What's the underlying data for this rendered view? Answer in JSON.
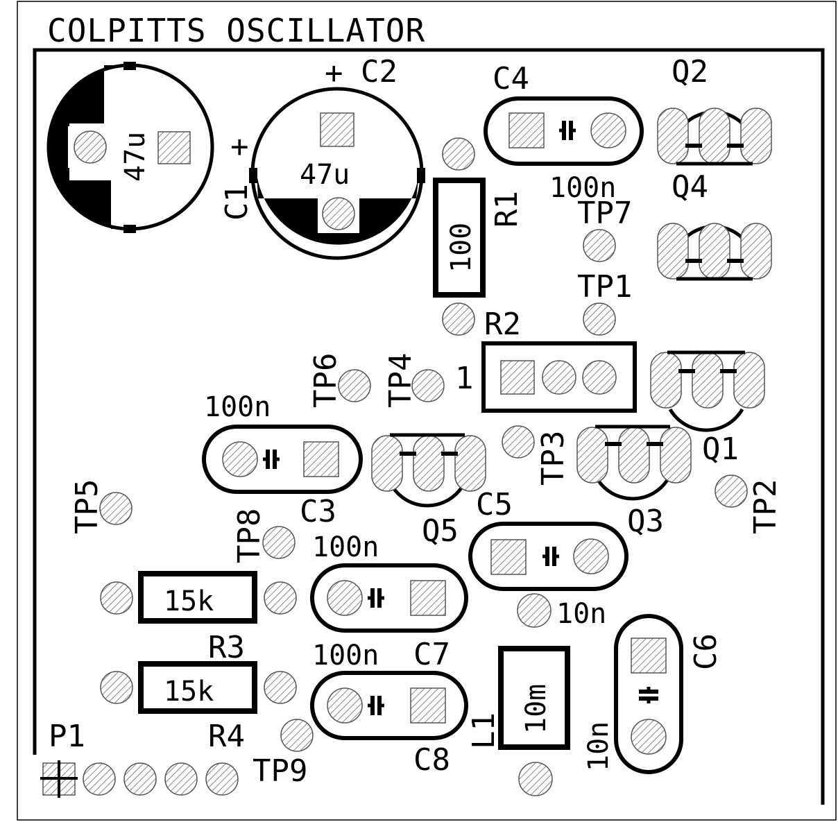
{
  "title": "COLPITTS OSCILLATOR",
  "symbols": {
    "plus": "+",
    "pin_one": "1"
  },
  "components": {
    "C1": {
      "ref": "C1",
      "value": "47u"
    },
    "C2": {
      "ref": "C2",
      "value": "47u"
    },
    "C3": {
      "ref": "C3",
      "value": "100n"
    },
    "C4": {
      "ref": "C4",
      "value": "100n"
    },
    "C5": {
      "ref": "C5",
      "value": "10n"
    },
    "C6": {
      "ref": "C6",
      "value": "10n"
    },
    "C7": {
      "ref": "C7",
      "value": "100n"
    },
    "C8": {
      "ref": "C8",
      "value": "100n"
    },
    "R1": {
      "ref": "R1",
      "value": "100"
    },
    "R2": {
      "ref": "R2"
    },
    "R3": {
      "ref": "R3",
      "value": "15k"
    },
    "R4": {
      "ref": "R4",
      "value": "15k"
    },
    "L1": {
      "ref": "L1",
      "value": "10m"
    },
    "Q1": {
      "ref": "Q1"
    },
    "Q2": {
      "ref": "Q2"
    },
    "Q3": {
      "ref": "Q3"
    },
    "Q4": {
      "ref": "Q4"
    },
    "Q5": {
      "ref": "Q5"
    },
    "P1": {
      "ref": "P1"
    }
  },
  "testpoints": {
    "TP1": "TP1",
    "TP2": "TP2",
    "TP3": "TP3",
    "TP4": "TP4",
    "TP5": "TP5",
    "TP6": "TP6",
    "TP7": "TP7",
    "TP8": "TP8",
    "TP9": "TP9"
  }
}
